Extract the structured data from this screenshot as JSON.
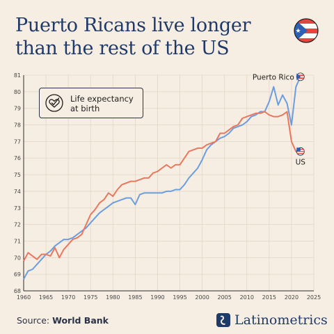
{
  "header": {
    "title_line1": "Puerto Ricans live longer",
    "title_line2": "than the rest of the US"
  },
  "legend": {
    "label_line1": "Life expectancy",
    "label_line2": "at birth",
    "icon": "heart-check-icon"
  },
  "footer": {
    "source_prefix": "Source: ",
    "source_name": "World Bank",
    "brand": "Latinometrics",
    "brand_icon": "latinometrics-logo-icon"
  },
  "colors": {
    "puerto_rico": "#6a9ee0",
    "us": "#e9775e",
    "title": "#1f3a68",
    "background": "#f7eee3"
  },
  "chart_data": {
    "type": "line",
    "title": "Puerto Ricans live longer than the rest of the US",
    "xlabel": "",
    "ylabel": "",
    "xlim": [
      1960,
      2025
    ],
    "ylim": [
      68,
      81
    ],
    "xticks": [
      1960,
      1965,
      1970,
      1975,
      1980,
      1985,
      1990,
      1995,
      2000,
      2005,
      2010,
      2015,
      2020,
      2025
    ],
    "yticks": [
      68,
      69,
      70,
      71,
      72,
      73,
      74,
      75,
      76,
      77,
      78,
      79,
      80,
      81
    ],
    "grid": true,
    "series": [
      {
        "name": "Puerto Rico",
        "color": "#6a9ee0",
        "end_label": "Puerto Rico",
        "x": [
          1960,
          1961,
          1962,
          1963,
          1964,
          1965,
          1966,
          1967,
          1968,
          1969,
          1970,
          1971,
          1972,
          1973,
          1974,
          1975,
          1976,
          1977,
          1978,
          1979,
          1980,
          1981,
          1982,
          1983,
          1984,
          1985,
          1986,
          1987,
          1988,
          1989,
          1990,
          1991,
          1992,
          1993,
          1994,
          1995,
          1996,
          1997,
          1998,
          1999,
          2000,
          2001,
          2002,
          2003,
          2004,
          2005,
          2006,
          2007,
          2008,
          2009,
          2010,
          2011,
          2012,
          2013,
          2014,
          2015,
          2016,
          2017,
          2018,
          2019,
          2020,
          2021,
          2022
        ],
        "values": [
          68.7,
          69.2,
          69.3,
          69.6,
          69.9,
          70.2,
          70.4,
          70.7,
          70.9,
          71.1,
          71.1,
          71.2,
          71.4,
          71.6,
          71.8,
          72.1,
          72.4,
          72.7,
          72.9,
          73.1,
          73.3,
          73.4,
          73.5,
          73.6,
          73.6,
          73.2,
          73.8,
          73.9,
          73.9,
          73.9,
          73.9,
          73.9,
          74.0,
          74.0,
          74.1,
          74.1,
          74.4,
          74.8,
          75.1,
          75.4,
          75.9,
          76.5,
          76.8,
          77.0,
          77.2,
          77.3,
          77.5,
          77.8,
          77.9,
          78.0,
          78.2,
          78.5,
          78.6,
          78.8,
          78.8,
          79.4,
          80.3,
          79.2,
          79.8,
          79.3,
          78.0,
          80.3,
          80.9
        ]
      },
      {
        "name": "US",
        "color": "#e9775e",
        "end_label": "US",
        "x": [
          1960,
          1961,
          1962,
          1963,
          1964,
          1965,
          1966,
          1967,
          1968,
          1969,
          1970,
          1971,
          1972,
          1973,
          1974,
          1975,
          1976,
          1977,
          1978,
          1979,
          1980,
          1981,
          1982,
          1983,
          1984,
          1985,
          1986,
          1987,
          1988,
          1989,
          1990,
          1991,
          1992,
          1993,
          1994,
          1995,
          1996,
          1997,
          1998,
          1999,
          2000,
          2001,
          2002,
          2003,
          2004,
          2005,
          2006,
          2007,
          2008,
          2009,
          2010,
          2011,
          2012,
          2013,
          2014,
          2015,
          2016,
          2017,
          2018,
          2019,
          2020,
          2021,
          2022
        ],
        "values": [
          69.8,
          70.3,
          70.1,
          69.9,
          70.2,
          70.2,
          70.1,
          70.6,
          70.0,
          70.5,
          70.8,
          71.1,
          71.2,
          71.4,
          72.0,
          72.6,
          72.9,
          73.3,
          73.5,
          73.9,
          73.7,
          74.1,
          74.4,
          74.5,
          74.6,
          74.6,
          74.7,
          74.8,
          74.8,
          75.1,
          75.2,
          75.4,
          75.6,
          75.4,
          75.6,
          75.6,
          76.0,
          76.4,
          76.5,
          76.6,
          76.6,
          76.8,
          76.9,
          77.0,
          77.5,
          77.5,
          77.7,
          77.9,
          78.0,
          78.4,
          78.5,
          78.6,
          78.7,
          78.7,
          78.8,
          78.6,
          78.5,
          78.5,
          78.6,
          78.8,
          77.0,
          76.4,
          76.4
        ]
      }
    ]
  }
}
